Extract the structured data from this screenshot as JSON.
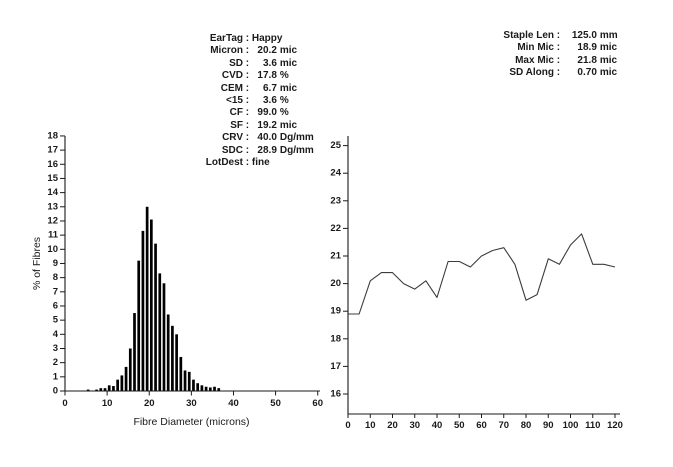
{
  "stats_left": {
    "rows": [
      {
        "label": "EarTag",
        "value": "Happy",
        "unit": "",
        "text": true
      },
      {
        "label": "Micron",
        "value": "20.2",
        "unit": "mic"
      },
      {
        "label": "SD",
        "value": "3.6",
        "unit": "mic"
      },
      {
        "label": "CVD",
        "value": "17.8",
        "unit": "%"
      },
      {
        "label": "CEM",
        "value": "6.7",
        "unit": "mic"
      },
      {
        "label": "<15",
        "value": "3.6",
        "unit": "%"
      },
      {
        "label": "CF",
        "value": "99.0",
        "unit": "%"
      },
      {
        "label": "SF",
        "value": "19.2",
        "unit": "mic"
      },
      {
        "label": "CRV",
        "value": "40.0",
        "unit": "Dg/mm"
      },
      {
        "label": "SDC",
        "value": "28.9",
        "unit": "Dg/mm"
      },
      {
        "label": "LotDest",
        "value": "fine",
        "unit": "",
        "text": true
      }
    ]
  },
  "stats_right": {
    "rows": [
      {
        "label": "Staple Len",
        "value": "125.0",
        "unit": "mm"
      },
      {
        "label": "Min Mic",
        "value": "18.9",
        "unit": "mic"
      },
      {
        "label": "Max Mic",
        "value": "21.8",
        "unit": "mic"
      },
      {
        "label": "SD Along",
        "value": "0.70",
        "unit": "mic"
      }
    ]
  },
  "chart_data": [
    {
      "type": "bar",
      "title": "",
      "xlabel": "Fibre Diameter (microns)",
      "ylabel": "% of Fibres",
      "xlim": [
        0,
        60
      ],
      "ylim": [
        0,
        18
      ],
      "grid": false,
      "x_ticks": [
        0,
        10,
        20,
        30,
        40,
        50,
        60
      ],
      "y_ticks": [
        0,
        1,
        2,
        3,
        4,
        5,
        6,
        7,
        8,
        9,
        10,
        11,
        12,
        13,
        14,
        15,
        16,
        17,
        18
      ],
      "x": [
        5.5,
        7.5,
        8.5,
        9.5,
        10.5,
        11.5,
        12.5,
        13.5,
        14.5,
        15.5,
        16.5,
        17.5,
        18.5,
        19.5,
        20.5,
        21.5,
        22.5,
        23.5,
        24.5,
        25.5,
        26.5,
        27.5,
        28.5,
        29.5,
        30.5,
        31.5,
        32.5,
        33.5,
        34.5,
        35.5,
        36.5
      ],
      "values": [
        0.1,
        0.1,
        0.2,
        0.2,
        0.4,
        0.35,
        0.8,
        1.1,
        1.7,
        3.0,
        5.5,
        9.2,
        11.3,
        13.0,
        12.1,
        10.4,
        8.3,
        7.6,
        5.4,
        4.6,
        4.0,
        2.4,
        1.45,
        1.35,
        0.8,
        0.55,
        0.4,
        0.3,
        0.25,
        0.3,
        0.2
      ]
    },
    {
      "type": "line",
      "title": "",
      "xlabel": "",
      "ylabel": "",
      "xlim": [
        0,
        125
      ],
      "ylim": [
        15.3,
        25.4
      ],
      "grid": false,
      "x_ticks": [
        0,
        10,
        20,
        30,
        40,
        50,
        60,
        70,
        80,
        90,
        100,
        110,
        120
      ],
      "y_ticks": [
        16,
        17,
        18,
        19,
        20,
        21,
        22,
        23,
        24,
        25
      ],
      "x": [
        0,
        5,
        10,
        15,
        20,
        25,
        30,
        35,
        40,
        45,
        50,
        55,
        60,
        65,
        70,
        75,
        80,
        85,
        90,
        95,
        100,
        105,
        110,
        115,
        120
      ],
      "values": [
        18.9,
        18.9,
        20.1,
        20.4,
        20.4,
        20.0,
        19.8,
        20.1,
        19.5,
        20.8,
        20.8,
        20.6,
        21.0,
        21.2,
        21.3,
        20.7,
        19.4,
        19.6,
        20.9,
        20.7,
        21.4,
        21.8,
        20.7,
        20.7,
        20.6
      ]
    }
  ],
  "colors": {
    "bar": "#000000",
    "line": "#3c3c3c",
    "axis": "#1a1a1a",
    "background": "#ffffff"
  }
}
